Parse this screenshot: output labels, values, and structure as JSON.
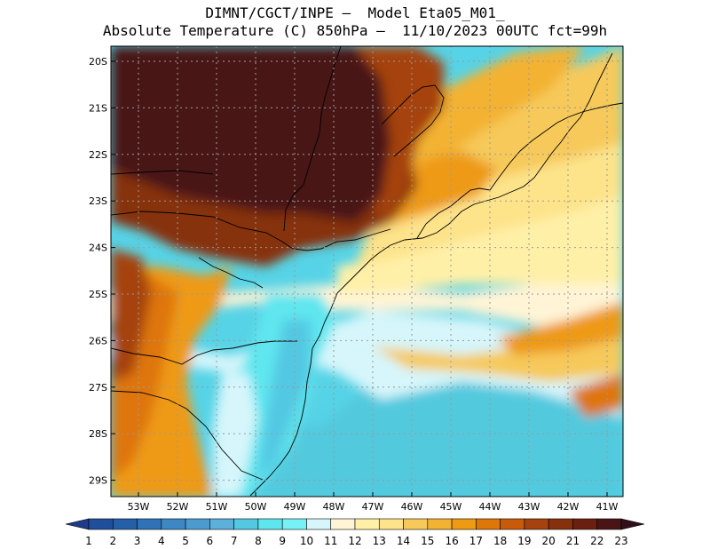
{
  "header": {
    "line1": "DIMNT/CGCT/INPE –  Model Eta05_M01_",
    "line2": "Absolute Temperature (C) 850hPa –  11/10/2023 00UTC fct=99h"
  },
  "map": {
    "lon_range": [
      -53.7,
      -40.6
    ],
    "lat_range": [
      -29.4,
      -19.8
    ],
    "lat_ticks": [
      "20S",
      "21S",
      "22S",
      "23S",
      "24S",
      "25S",
      "26S",
      "27S",
      "28S",
      "29S"
    ],
    "lon_ticks": [
      "53W",
      "52W",
      "51W",
      "50W",
      "49W",
      "48W",
      "47W",
      "46W",
      "45W",
      "44W",
      "43W",
      "42W",
      "41W"
    ]
  },
  "colorbar": {
    "labels": [
      "1",
      "2",
      "3",
      "4",
      "5",
      "6",
      "7",
      "8",
      "9",
      "10",
      "11",
      "12",
      "13",
      "14",
      "15",
      "16",
      "17",
      "18",
      "19",
      "20",
      "21",
      "22",
      "23"
    ],
    "colors": [
      "#1f3a8a",
      "#1f4f9a",
      "#255fa8",
      "#2f72b6",
      "#3d87c4",
      "#4c9bd0",
      "#5cb0dc",
      "#52c8e2",
      "#5ee6ef",
      "#76f2f7",
      "#d6f6fb",
      "#fff4d6",
      "#fff0a8",
      "#fde38a",
      "#f6c95a",
      "#f3b232",
      "#ee9a12",
      "#de7608",
      "#c85a0a",
      "#a5420e",
      "#86300e",
      "#6b1f10",
      "#4a1416",
      "#30101a"
    ]
  }
}
